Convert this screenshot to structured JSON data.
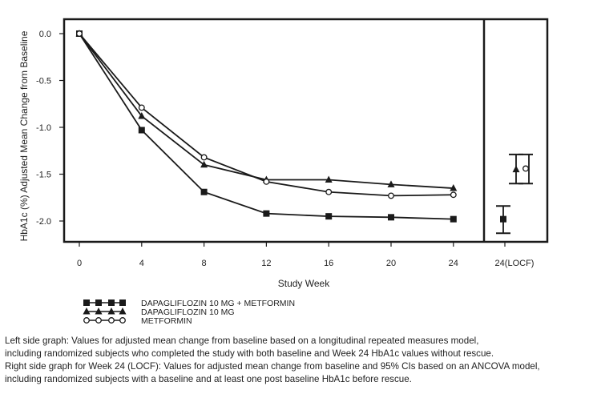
{
  "chart_data": {
    "type": "line",
    "ylabel": "HbA1c (%) Adjusted Mean Change from Baseline",
    "xlabel": "Study Week",
    "x": [
      0,
      4,
      8,
      12,
      16,
      20,
      24
    ],
    "x_tick_labels": [
      "0",
      "4",
      "8",
      "12",
      "16",
      "20",
      "24"
    ],
    "ylim": [
      -2.3,
      0.1
    ],
    "y_ticks": [
      0.0,
      -0.5,
      -1.0,
      -1.5,
      -2.0
    ],
    "y_tick_labels": [
      "0.0",
      "-0.5",
      "-1.0",
      "-1.5",
      "-2.0"
    ],
    "series": [
      {
        "name": "DAPAGLIFLOZIN 10 MG + METFORMIN",
        "marker": "square",
        "values": [
          0.0,
          -1.03,
          -1.69,
          -1.92,
          -1.95,
          -1.96,
          -1.98
        ]
      },
      {
        "name": "DAPAGLIFLOZIN 10 MG",
        "marker": "triangle",
        "values": [
          0.0,
          -0.88,
          -1.4,
          -1.56,
          -1.56,
          -1.61,
          -1.65
        ]
      },
      {
        "name": "METFORMIN",
        "marker": "circle",
        "values": [
          0.0,
          -0.79,
          -1.32,
          -1.58,
          -1.69,
          -1.73,
          -1.72
        ]
      }
    ],
    "locf_panel": {
      "x_label": "24(LOCF)",
      "points": [
        {
          "series": "DAPAGLIFLOZIN 10 MG + METFORMIN",
          "marker": "square",
          "mean": -1.98,
          "ci": [
            -2.13,
            -1.84
          ]
        },
        {
          "series": "DAPAGLIFLOZIN 10 MG",
          "marker": "triangle",
          "mean": -1.45,
          "ci": [
            -1.6,
            -1.29
          ]
        },
        {
          "series": "METFORMIN",
          "marker": "circle",
          "mean": -1.44,
          "ci": [
            -1.6,
            -1.29
          ]
        }
      ]
    }
  },
  "legend": [
    {
      "label": "DAPAGLIFLOZIN 10 MG + METFORMIN",
      "marker": "square"
    },
    {
      "label": "DAPAGLIFLOZIN 10 MG",
      "marker": "triangle"
    },
    {
      "label": "METFORMIN",
      "marker": "circle"
    }
  ],
  "footnote": {
    "line1": "Left side graph: Values for adjusted mean change from baseline based on a longitudinal repeated measures model,",
    "line2": "including randomized subjects who completed the study with both baseline and Week 24 HbA1c values without rescue.",
    "line3": "Right side graph for Week 24 (LOCF): Values for adjusted mean change from baseline and 95% CIs based on an ANCOVA model,",
    "line4": "including randomized subjects with a baseline and at least one post baseline HbA1c before rescue."
  },
  "colors": {
    "ink": "#1a1a1a",
    "background": "#ffffff"
  }
}
